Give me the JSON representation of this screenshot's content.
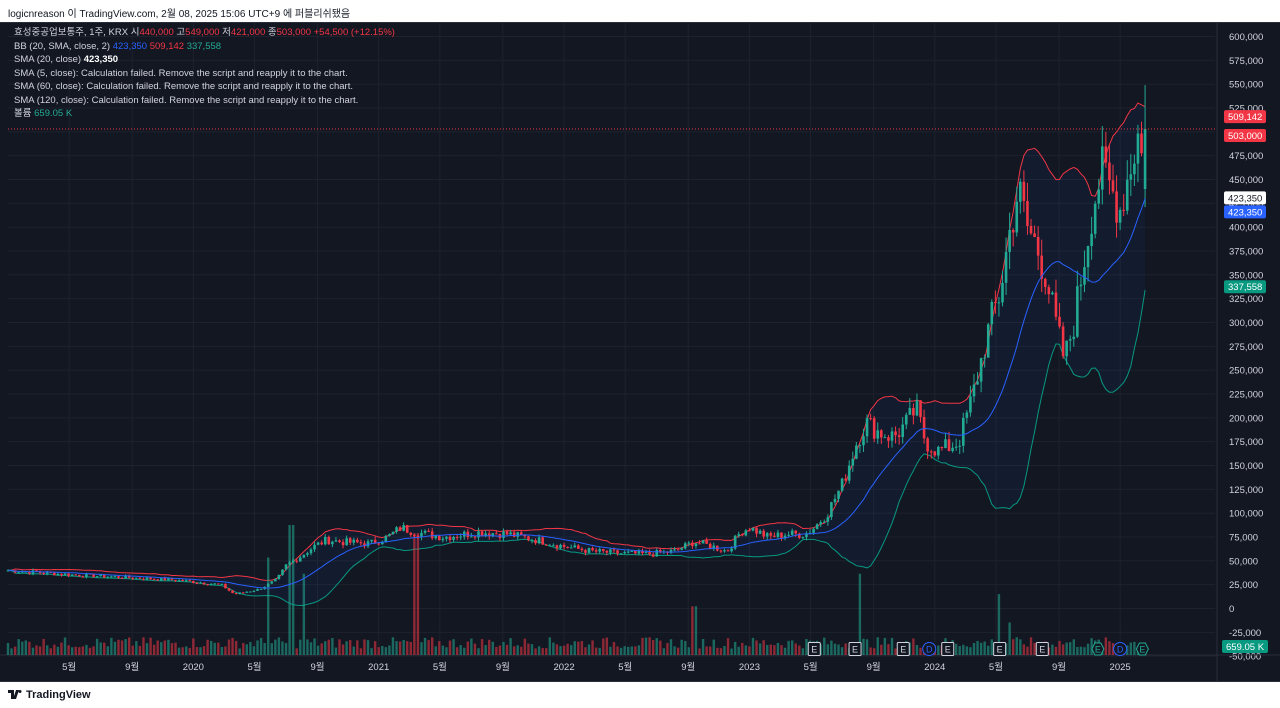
{
  "header": {
    "title": "logicnreason 이 TradingView.com, 2월 08, 2025 15:06 UTC+9 에 퍼블리쉬됐음"
  },
  "legend": {
    "symbol": "효성중공업보통주, 1주, KRX",
    "open_label": "시",
    "open": "440,000",
    "high_label": "고",
    "high": "549,000",
    "low_label": "저",
    "low": "421,000",
    "close_label": "종",
    "close": "503,000",
    "change": "+54,500 (+12.15%)",
    "bb_label": "BB (20, SMA, close, 2)",
    "bb_basis": "423,350",
    "bb_upper": "509,142",
    "bb_lower": "337,558",
    "sma20_label": "SMA (20, close)",
    "sma20_value": "423,350",
    "sma5_text": "SMA (5, close): Calculation failed. Remove the script and reapply it to the chart.",
    "sma60_text": "SMA (60, close): Calculation failed. Remove the script and reapply it to the chart.",
    "sma120_text": "SMA (120, close): Calculation failed. Remove the script and reapply it to the chart.",
    "volume_label": "볼륨",
    "volume_value": "659.05 K"
  },
  "price_tags": {
    "upper": "509,142",
    "close": "503,000",
    "sma": "423,350",
    "basis": "423,350",
    "lower": "337,558",
    "volume": "659.05 K"
  },
  "colors": {
    "up": "#22ab94",
    "down": "#f23645",
    "basis": "#2962ff",
    "upper": "#f23645",
    "lower": "#089981",
    "grid": "#1e222d",
    "axis_text": "#d1d4dc"
  },
  "footer": {
    "brand": "TradingView"
  },
  "event_markers": [
    "E",
    "E",
    "E",
    "D",
    "E",
    "E",
    "E",
    "E",
    "D",
    "E"
  ],
  "chart_data": {
    "type": "candlestick",
    "title": "효성중공업보통주, 1주, KRX",
    "interval": "1주",
    "y_axis": {
      "ylim": [
        -50000,
        600000
      ],
      "ticks": [
        "600,000",
        "575,000",
        "550,000",
        "525,000",
        "500,000",
        "475,000",
        "450,000",
        "425,000",
        "400,000",
        "375,000",
        "350,000",
        "325,000",
        "300,000",
        "275,000",
        "250,000",
        "225,000",
        "200,000",
        "175,000",
        "150,000",
        "125,000",
        "100,000",
        "75,000",
        "50,000",
        "25,000",
        "0",
        "-25,000",
        "-50,000"
      ]
    },
    "x_axis": {
      "ticks": [
        "5월",
        "9월",
        "2020",
        "5월",
        "9월",
        "2021",
        "5월",
        "9월",
        "2022",
        "5월",
        "9월",
        "2023",
        "5월",
        "9월",
        "2024",
        "5월",
        "9월",
        "2025"
      ],
      "tick_times": [
        2019.33,
        2019.67,
        2020.0,
        2020.33,
        2020.67,
        2021.0,
        2021.33,
        2021.67,
        2022.0,
        2022.33,
        2022.67,
        2023.0,
        2023.33,
        2023.67,
        2024.0,
        2024.33,
        2024.67,
        2025.0
      ],
      "xlim": [
        2019.0,
        2025.35
      ]
    },
    "price_path": [
      [
        2019.0,
        40000
      ],
      [
        2019.3,
        36000
      ],
      [
        2019.6,
        33000
      ],
      [
        2019.9,
        30000
      ],
      [
        2020.15,
        25000
      ],
      [
        2020.22,
        15000
      ],
      [
        2020.35,
        20000
      ],
      [
        2020.45,
        30000
      ],
      [
        2020.5,
        45000
      ],
      [
        2020.58,
        55000
      ],
      [
        2020.65,
        65000
      ],
      [
        2020.72,
        72000
      ],
      [
        2020.8,
        70000
      ],
      [
        2020.95,
        68000
      ],
      [
        2021.05,
        75000
      ],
      [
        2021.12,
        85000
      ],
      [
        2021.2,
        80000
      ],
      [
        2021.35,
        75000
      ],
      [
        2021.55,
        80000
      ],
      [
        2021.7,
        78000
      ],
      [
        2021.9,
        70000
      ],
      [
        2022.0,
        65000
      ],
      [
        2022.15,
        60000
      ],
      [
        2022.3,
        58000
      ],
      [
        2022.45,
        57000
      ],
      [
        2022.6,
        60000
      ],
      [
        2022.7,
        70000
      ],
      [
        2022.8,
        65000
      ],
      [
        2022.88,
        60000
      ],
      [
        2022.95,
        80000
      ],
      [
        2023.0,
        85000
      ],
      [
        2023.1,
        75000
      ],
      [
        2023.2,
        78000
      ],
      [
        2023.3,
        78000
      ],
      [
        2023.35,
        85000
      ],
      [
        2023.42,
        100000
      ],
      [
        2023.5,
        130000
      ],
      [
        2023.58,
        175000
      ],
      [
        2023.63,
        195000
      ],
      [
        2023.7,
        185000
      ],
      [
        2023.78,
        180000
      ],
      [
        2023.85,
        195000
      ],
      [
        2023.9,
        210000
      ],
      [
        2023.95,
        175000
      ],
      [
        2024.02,
        165000
      ],
      [
        2024.08,
        170000
      ],
      [
        2024.13,
        175000
      ],
      [
        2024.2,
        220000
      ],
      [
        2024.25,
        260000
      ],
      [
        2024.3,
        300000
      ],
      [
        2024.35,
        330000
      ],
      [
        2024.4,
        390000
      ],
      [
        2024.45,
        440000
      ],
      [
        2024.5,
        400000
      ],
      [
        2024.55,
        380000
      ],
      [
        2024.6,
        350000
      ],
      [
        2024.65,
        300000
      ],
      [
        2024.7,
        260000
      ],
      [
        2024.75,
        300000
      ],
      [
        2024.8,
        360000
      ],
      [
        2024.85,
        420000
      ],
      [
        2024.9,
        460000
      ],
      [
        2024.95,
        440000
      ],
      [
        2025.0,
        420000
      ],
      [
        2025.05,
        460000
      ],
      [
        2025.1,
        500000
      ],
      [
        2025.13,
        448500
      ],
      [
        2025.15,
        503000
      ]
    ],
    "volume_peaks": [
      [
        2020.4,
        120000
      ],
      [
        2020.53,
        160000
      ],
      [
        2020.6,
        100000
      ],
      [
        2021.2,
        150000
      ],
      [
        2022.7,
        60000
      ],
      [
        2023.6,
        100000
      ],
      [
        2024.35,
        75000
      ],
      [
        2024.4,
        40000
      ],
      [
        2025.15,
        45000
      ]
    ],
    "series": [
      {
        "name": "효성중공업보통주",
        "last": 503000
      },
      {
        "name": "BB (20, SMA, close, 2)",
        "basis": 423350,
        "upper": 509142,
        "lower": 337558
      },
      {
        "name": "SMA (20, close)",
        "last": 423350
      },
      {
        "name": "볼륨",
        "last": "659.05 K"
      }
    ]
  }
}
